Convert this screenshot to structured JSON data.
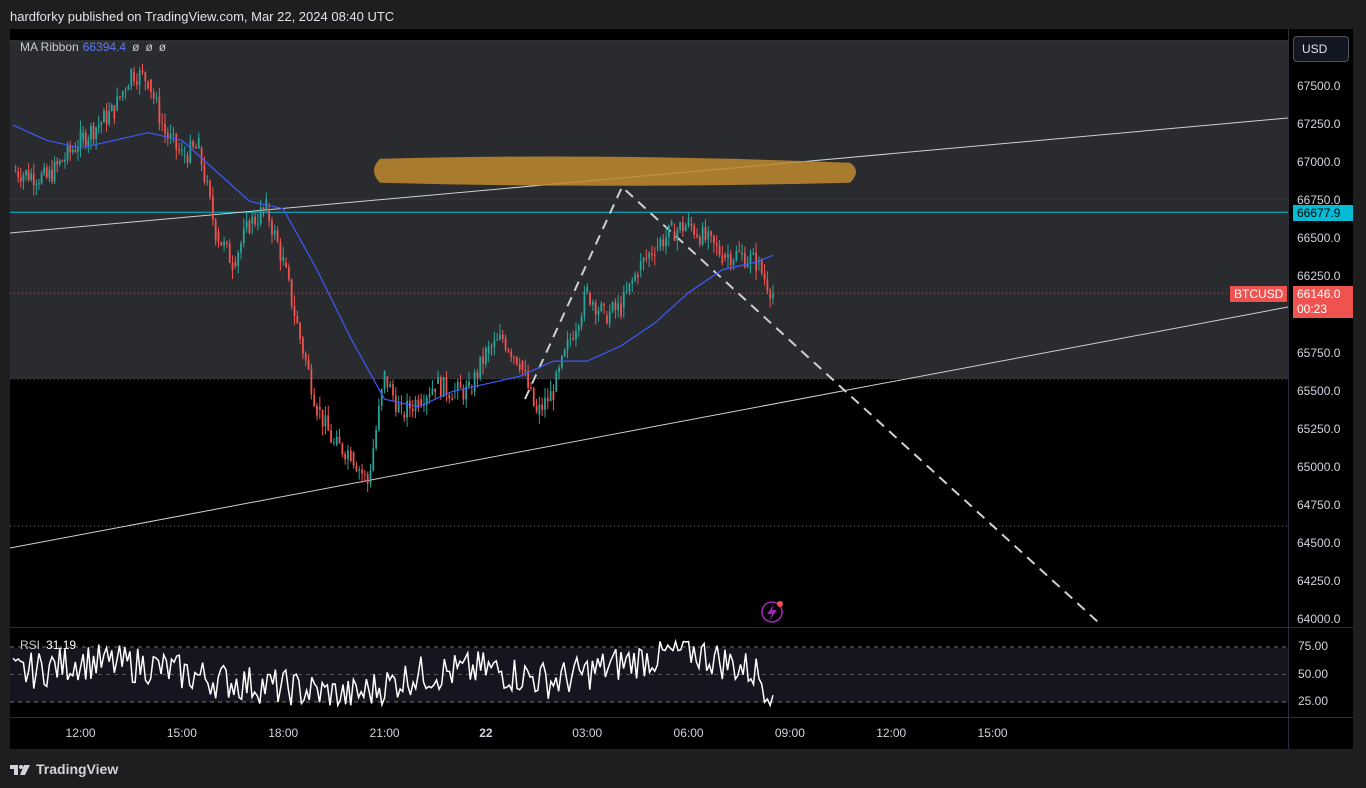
{
  "header": {
    "published_text": "hardforky published on TradingView.com, Mar 22, 2024 08:40 UTC"
  },
  "toolbar": {
    "currency": "USD"
  },
  "legend": {
    "indicator_name": "MA Ribbon",
    "indicator_value": "66394.4",
    "placeholders": [
      "ø",
      "ø",
      "ø"
    ]
  },
  "rsi_legend": {
    "name": "RSI",
    "value": "31.19"
  },
  "price_axis": {
    "ticks": [
      "67500.0",
      "67250.0",
      "67000.0",
      "66750.0",
      "66500.0",
      "66250.0",
      "66000.0",
      "65750.0",
      "65500.0",
      "65250.0",
      "65000.0",
      "64750.0",
      "64500.0",
      "64250.0",
      "64000.0"
    ]
  },
  "rsi_axis": {
    "ticks": [
      "75.00",
      "50.00",
      "25.00"
    ]
  },
  "time_axis": {
    "ticks": [
      {
        "label": "12:00",
        "bold": false
      },
      {
        "label": "15:00",
        "bold": false
      },
      {
        "label": "18:00",
        "bold": false
      },
      {
        "label": "21:00",
        "bold": false
      },
      {
        "label": "22",
        "bold": true
      },
      {
        "label": "03:00",
        "bold": false
      },
      {
        "label": "06:00",
        "bold": false
      },
      {
        "label": "09:00",
        "bold": false
      },
      {
        "label": "12:00",
        "bold": false
      },
      {
        "label": "15:00",
        "bold": false
      }
    ]
  },
  "tags": {
    "level_price": "66677.9",
    "symbol": "BTCUSD",
    "last_price": "66146.0",
    "countdown": "00:23"
  },
  "footer": {
    "brand": "TradingView"
  },
  "colors": {
    "up": "#26a69a",
    "down": "#ef5350",
    "ma": "#3d5afe",
    "zone": "#c08a2f",
    "level": "#00bcd4",
    "rsi": "#ffffff"
  },
  "chart_data": {
    "type": "line",
    "symbol": "BTCUSD",
    "ylim": [
      64000,
      67750
    ],
    "x_ticks": [
      "12:00",
      "15:00",
      "18:00",
      "21:00",
      "22",
      "03:00",
      "06:00",
      "09:00",
      "12:00",
      "15:00"
    ],
    "series": [
      {
        "name": "BTCUSD",
        "x": [
          "10:00",
          "11:00",
          "12:00",
          "13:00",
          "13:30",
          "14:00",
          "14:30",
          "15:00",
          "15:30",
          "16:00",
          "16:30",
          "17:00",
          "17:30",
          "18:00",
          "18:30",
          "19:00",
          "19:30",
          "20:00",
          "20:30",
          "21:00",
          "21:30",
          "22:00",
          "22:30",
          "23:00",
          "23:30",
          "00:00",
          "00:30",
          "01:00",
          "01:30",
          "02:00",
          "02:30",
          "03:00",
          "03:30",
          "04:00",
          "04:30",
          "05:00",
          "05:30",
          "06:00",
          "06:30",
          "07:00",
          "07:30",
          "08:00",
          "08:30"
        ],
        "values": [
          66950,
          66900,
          67150,
          67350,
          67600,
          67550,
          67200,
          67050,
          67100,
          66550,
          66350,
          66600,
          66700,
          66350,
          65850,
          65400,
          65150,
          65100,
          64900,
          65600,
          65350,
          65450,
          65550,
          65500,
          65500,
          65750,
          65850,
          65700,
          65350,
          65500,
          65850,
          66150,
          66000,
          66050,
          66300,
          66450,
          66550,
          66600,
          66500,
          66400,
          66400,
          66350,
          66146
        ]
      },
      {
        "name": "MA Ribbon",
        "x": [
          "10:00",
          "11:00",
          "12:00",
          "13:00",
          "14:00",
          "15:00",
          "16:00",
          "17:00",
          "18:00",
          "19:00",
          "20:00",
          "21:00",
          "22:00",
          "23:00",
          "00:00",
          "01:00",
          "02:00",
          "03:00",
          "04:00",
          "05:00",
          "06:00",
          "07:00",
          "08:00",
          "08:30"
        ],
        "values": [
          67250,
          67150,
          67100,
          67150,
          67200,
          67150,
          66950,
          66750,
          66700,
          66300,
          65850,
          65450,
          65400,
          65500,
          65550,
          65600,
          65700,
          65700,
          65800,
          65950,
          66150,
          66300,
          66350,
          66394.4
        ]
      },
      {
        "name": "RSI",
        "x": [
          "10:00",
          "12:00",
          "14:00",
          "16:00",
          "18:00",
          "20:00",
          "22:00",
          "00:00",
          "02:00",
          "04:00",
          "06:00",
          "08:00",
          "08:30"
        ],
        "values": [
          50,
          62,
          58,
          45,
          38,
          30,
          50,
          55,
          44,
          60,
          72,
          52,
          31.19
        ]
      }
    ],
    "annotations": {
      "level_line": 66677.9,
      "resistance_zone": 66950,
      "last_price": 66146.0
    }
  }
}
